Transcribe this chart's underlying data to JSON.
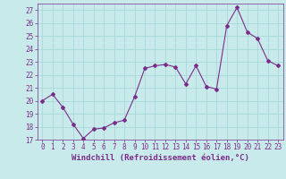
{
  "x": [
    0,
    1,
    2,
    3,
    4,
    5,
    6,
    7,
    8,
    9,
    10,
    11,
    12,
    13,
    14,
    15,
    16,
    17,
    18,
    19,
    20,
    21,
    22,
    23
  ],
  "y": [
    20.0,
    20.5,
    19.5,
    18.2,
    17.1,
    17.8,
    17.9,
    18.3,
    18.5,
    20.3,
    22.5,
    22.7,
    22.8,
    22.6,
    21.3,
    22.7,
    21.1,
    20.9,
    25.8,
    27.2,
    25.3,
    24.8,
    23.1,
    22.7
  ],
  "line_color": "#7b2d8b",
  "marker": "D",
  "marker_size": 2.0,
  "bg_color": "#c8eaea",
  "grid_color": "#a8d8d8",
  "xlabel": "Windchill (Refroidissement éolien,°C)",
  "xlim": [
    -0.5,
    23.5
  ],
  "ylim": [
    17,
    27.5
  ],
  "yticks": [
    17,
    18,
    19,
    20,
    21,
    22,
    23,
    24,
    25,
    26,
    27
  ],
  "xticks": [
    0,
    1,
    2,
    3,
    4,
    5,
    6,
    7,
    8,
    9,
    10,
    11,
    12,
    13,
    14,
    15,
    16,
    17,
    18,
    19,
    20,
    21,
    22,
    23
  ],
  "tick_color": "#7b2d8b",
  "tick_fontsize": 5.5,
  "xlabel_fontsize": 6.5
}
